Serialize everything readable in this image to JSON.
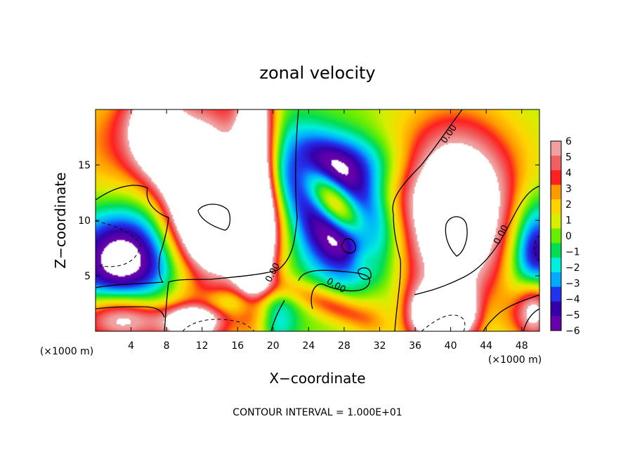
{
  "chart_data": {
    "type": "heatmap",
    "title": "zonal velocity",
    "xlabel": "X−coordinate",
    "ylabel": "Z−coordinate",
    "x_unit_left": "(×1000 m)",
    "x_unit_right": "(×1000 m)",
    "xlim": [
      0,
      50
    ],
    "ylim": [
      0,
      20
    ],
    "x_ticks": [
      4,
      8,
      12,
      16,
      20,
      24,
      28,
      32,
      36,
      40,
      44,
      48
    ],
    "y_ticks": [
      5,
      10,
      15
    ],
    "colorbar": {
      "min": -6,
      "max": 6,
      "labels": [
        "6",
        "5",
        "4",
        "3",
        "2",
        "1",
        "0",
        "−1",
        "−2",
        "−3",
        "−4",
        "−5",
        "−6"
      ],
      "colors": [
        "#f0a0a0",
        "#f06060",
        "#ff2020",
        "#ff9900",
        "#ffd400",
        "#d8ee00",
        "#66ee00",
        "#00dd55",
        "#00eedd",
        "#00aaff",
        "#2233ee",
        "#3300aa",
        "#6600aa"
      ]
    },
    "contour_labels": [
      "0.00",
      "0.00",
      "0.00",
      "0.00"
    ],
    "contour_interval_text": "CONTOUR INTERVAL = 1.000E+01",
    "white_saturation_threshold": 6
  }
}
